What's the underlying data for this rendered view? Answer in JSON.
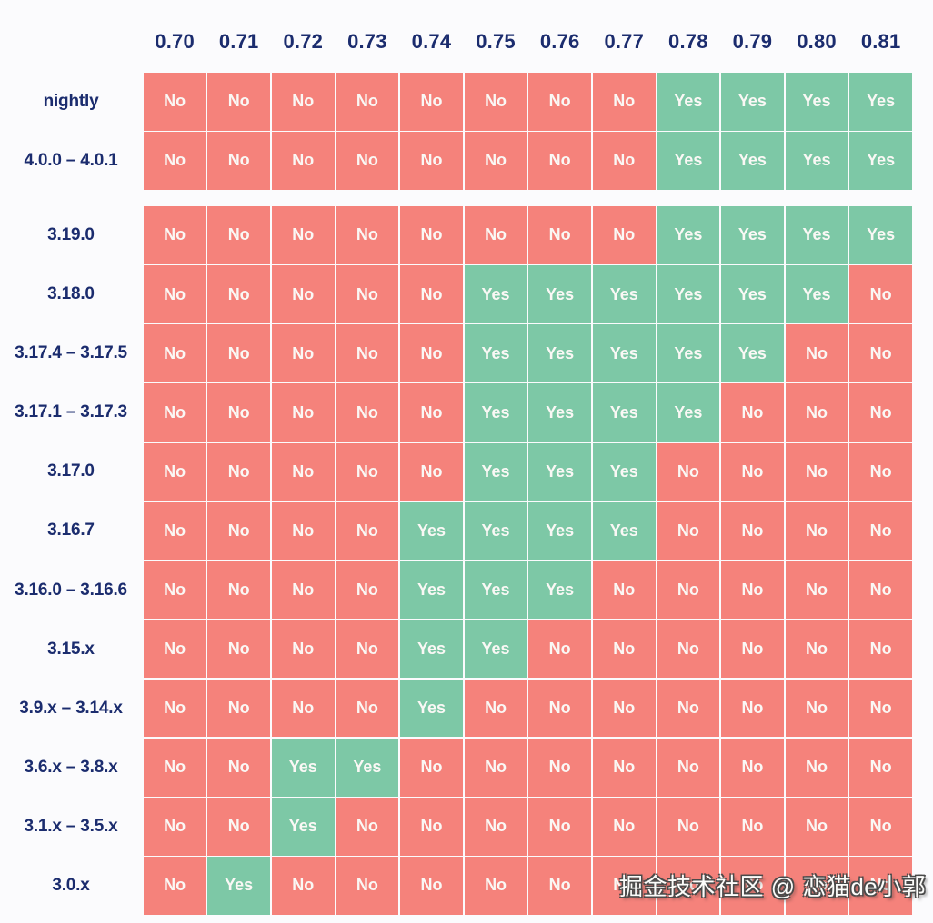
{
  "page": {
    "background": "#FBFBFD",
    "watermark": "掘金技术社区 @ 恋猫de小郭"
  },
  "chart_data": {
    "type": "heatmap",
    "title": "",
    "xlabel": "",
    "ylabel": "",
    "legend_position": "none",
    "grid": false,
    "columns": [
      "0.70",
      "0.71",
      "0.72",
      "0.73",
      "0.74",
      "0.75",
      "0.76",
      "0.77",
      "0.78",
      "0.79",
      "0.80",
      "0.81"
    ],
    "rows": [
      {
        "label": "nightly",
        "group_start": false,
        "values": [
          "No",
          "No",
          "No",
          "No",
          "No",
          "No",
          "No",
          "No",
          "Yes",
          "Yes",
          "Yes",
          "Yes"
        ]
      },
      {
        "label": "4.0.0 – 4.0.1",
        "group_start": false,
        "values": [
          "No",
          "No",
          "No",
          "No",
          "No",
          "No",
          "No",
          "No",
          "Yes",
          "Yes",
          "Yes",
          "Yes"
        ]
      },
      {
        "label": "3.19.0",
        "group_start": true,
        "values": [
          "No",
          "No",
          "No",
          "No",
          "No",
          "No",
          "No",
          "No",
          "Yes",
          "Yes",
          "Yes",
          "Yes"
        ]
      },
      {
        "label": "3.18.0",
        "group_start": false,
        "values": [
          "No",
          "No",
          "No",
          "No",
          "No",
          "Yes",
          "Yes",
          "Yes",
          "Yes",
          "Yes",
          "Yes",
          "No"
        ]
      },
      {
        "label": "3.17.4 – 3.17.5",
        "group_start": false,
        "values": [
          "No",
          "No",
          "No",
          "No",
          "No",
          "Yes",
          "Yes",
          "Yes",
          "Yes",
          "Yes",
          "No",
          "No"
        ]
      },
      {
        "label": "3.17.1 – 3.17.3",
        "group_start": false,
        "values": [
          "No",
          "No",
          "No",
          "No",
          "No",
          "Yes",
          "Yes",
          "Yes",
          "Yes",
          "No",
          "No",
          "No"
        ]
      },
      {
        "label": "3.17.0",
        "group_start": false,
        "values": [
          "No",
          "No",
          "No",
          "No",
          "No",
          "Yes",
          "Yes",
          "Yes",
          "No",
          "No",
          "No",
          "No"
        ]
      },
      {
        "label": "3.16.7",
        "group_start": false,
        "values": [
          "No",
          "No",
          "No",
          "No",
          "Yes",
          "Yes",
          "Yes",
          "Yes",
          "No",
          "No",
          "No",
          "No"
        ]
      },
      {
        "label": "3.16.0 – 3.16.6",
        "group_start": false,
        "values": [
          "No",
          "No",
          "No",
          "No",
          "Yes",
          "Yes",
          "Yes",
          "No",
          "No",
          "No",
          "No",
          "No"
        ]
      },
      {
        "label": "3.15.x",
        "group_start": false,
        "values": [
          "No",
          "No",
          "No",
          "No",
          "Yes",
          "Yes",
          "No",
          "No",
          "No",
          "No",
          "No",
          "No"
        ]
      },
      {
        "label": "3.9.x – 3.14.x",
        "group_start": false,
        "values": [
          "No",
          "No",
          "No",
          "No",
          "Yes",
          "No",
          "No",
          "No",
          "No",
          "No",
          "No",
          "No"
        ]
      },
      {
        "label": "3.6.x – 3.8.x",
        "group_start": false,
        "values": [
          "No",
          "No",
          "Yes",
          "Yes",
          "No",
          "No",
          "No",
          "No",
          "No",
          "No",
          "No",
          "No"
        ]
      },
      {
        "label": "3.1.x – 3.5.x",
        "group_start": false,
        "values": [
          "No",
          "No",
          "Yes",
          "No",
          "No",
          "No",
          "No",
          "No",
          "No",
          "No",
          "No",
          "No"
        ]
      },
      {
        "label": "3.0.x",
        "group_start": false,
        "values": [
          "No",
          "Yes",
          "No",
          "No",
          "No",
          "No",
          "No",
          "No",
          "No",
          "No",
          "No",
          "No"
        ]
      }
    ],
    "cell_values": [
      "Yes",
      "No"
    ],
    "colors": {
      "yes": "#7DC8A6",
      "no": "#F5827B",
      "label_text": "#1B2C6E",
      "cell_text": "#FAF8F5",
      "background": "#FBFBFD"
    }
  }
}
